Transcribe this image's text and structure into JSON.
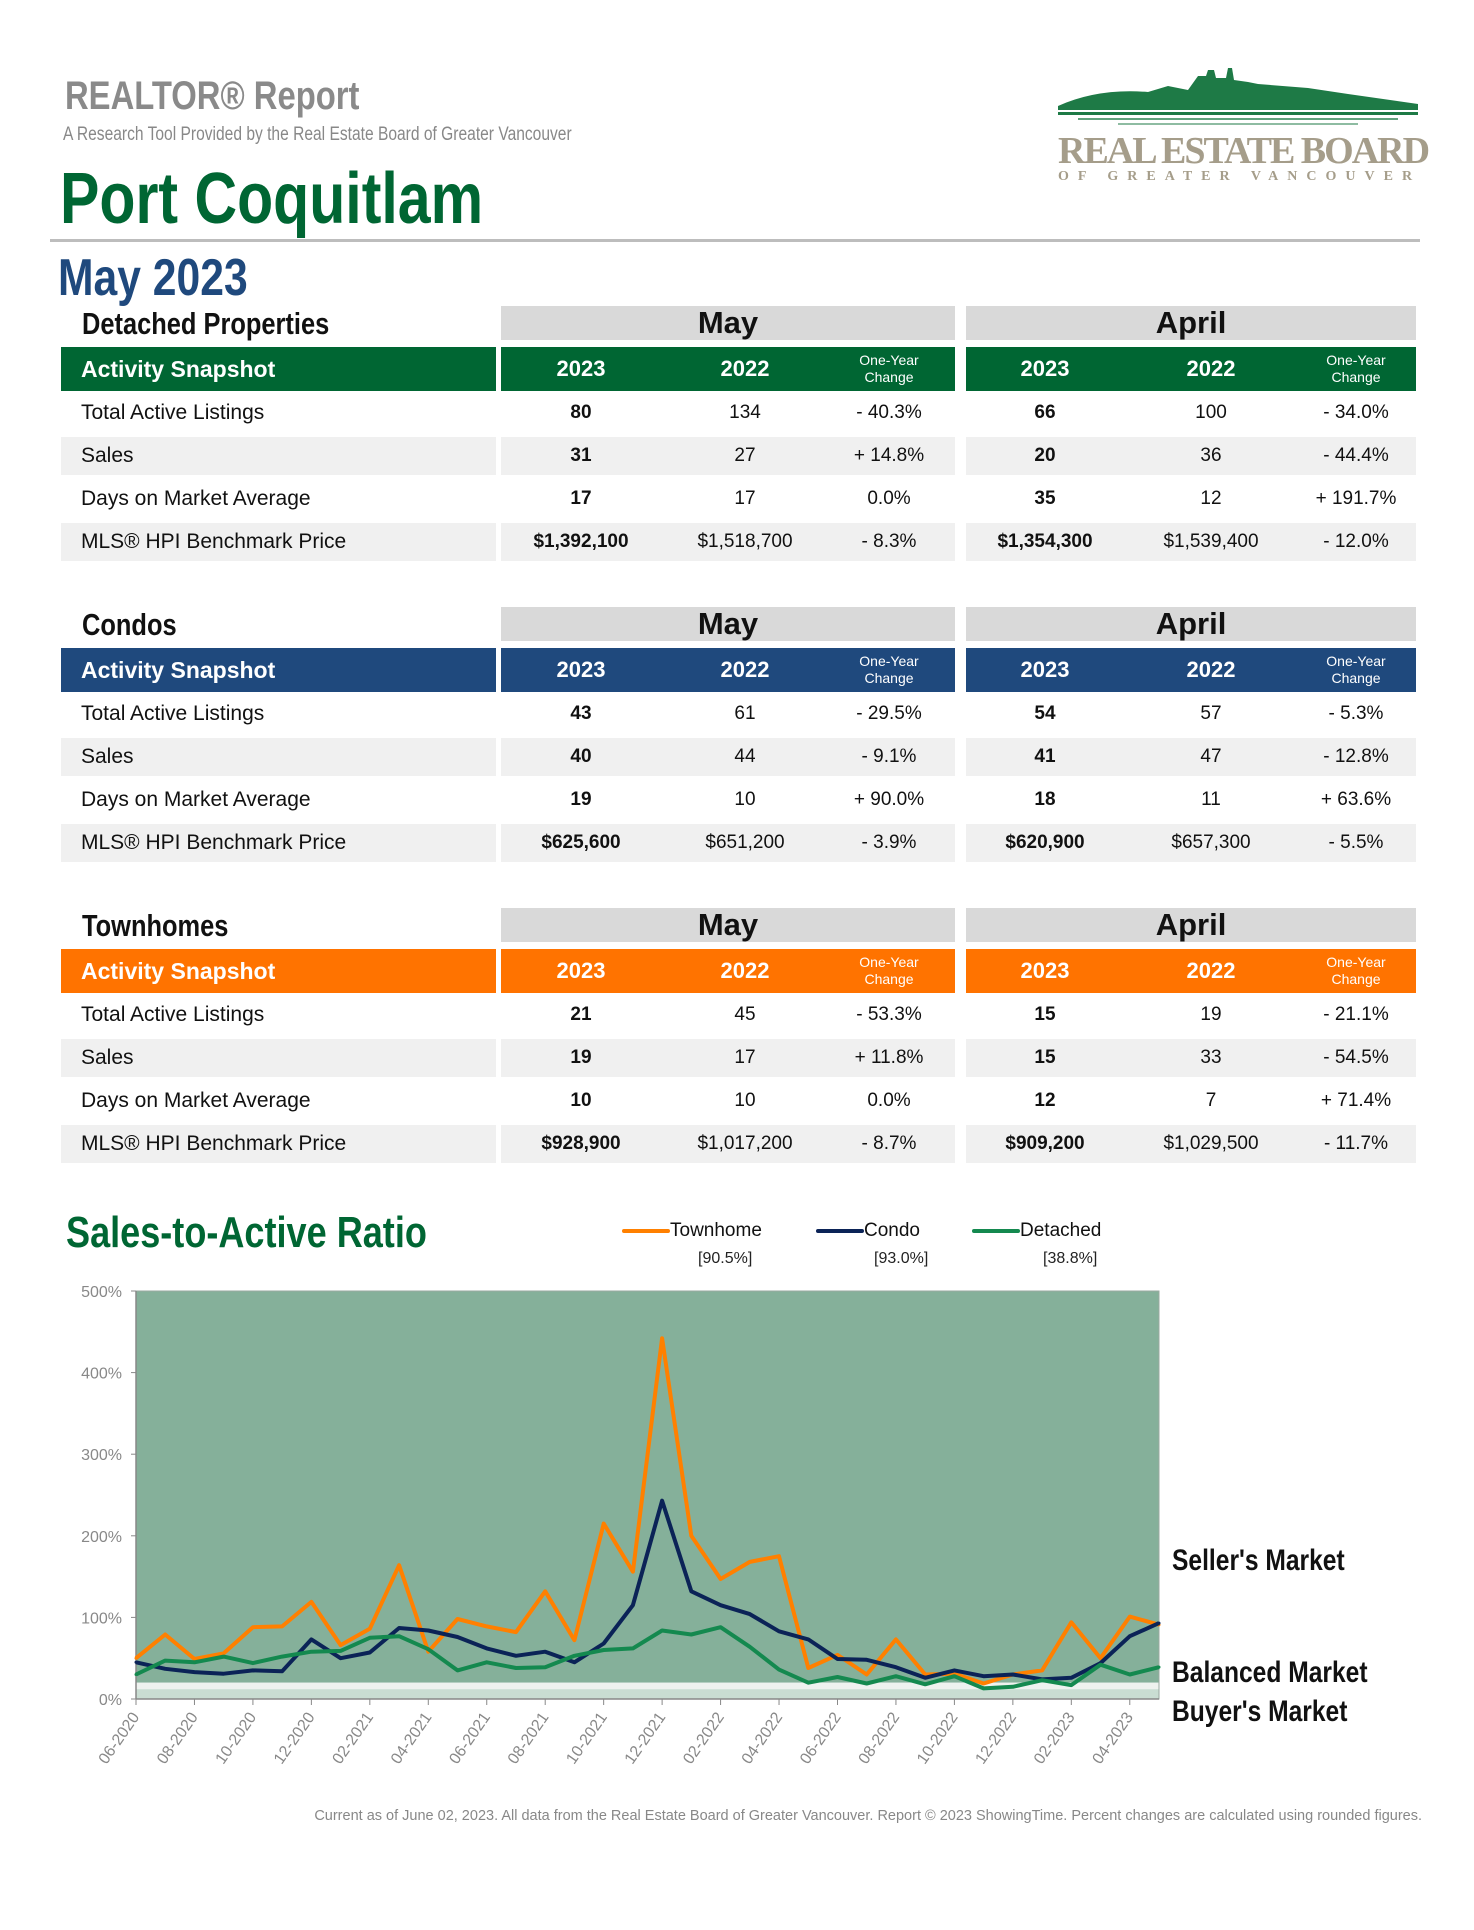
{
  "header": {
    "report_title": "REALTOR® Report",
    "subtitle": "A Research Tool Provided by the Real Estate Board of Greater Vancouver",
    "city": "Port Coquitlam",
    "period": "May 2023",
    "logo_line1": "REAL ESTATE BOARD",
    "logo_line2": "OF GREATER VANCOUVER"
  },
  "columns": {
    "months": [
      "May",
      "April"
    ],
    "snapshot_label": "Activity Snapshot",
    "year_current": "2023",
    "year_prior": "2022",
    "change_line1": "One-Year",
    "change_line2": "Change"
  },
  "sections": [
    {
      "title": "Detached Properties",
      "color": "#006633",
      "rows": [
        {
          "label": "Total Active Listings",
          "may": [
            "80",
            "134",
            "- 40.3%"
          ],
          "april": [
            "66",
            "100",
            "- 34.0%"
          ]
        },
        {
          "label": "Sales",
          "may": [
            "31",
            "27",
            "+ 14.8%"
          ],
          "april": [
            "20",
            "36",
            "- 44.4%"
          ]
        },
        {
          "label": "Days on Market Average",
          "may": [
            "17",
            "17",
            "0.0%"
          ],
          "april": [
            "35",
            "12",
            "+ 191.7%"
          ]
        },
        {
          "label": "MLS® HPI Benchmark Price",
          "may": [
            "$1,392,100",
            "$1,518,700",
            "- 8.3%"
          ],
          "april": [
            "$1,354,300",
            "$1,539,400",
            "- 12.0%"
          ]
        }
      ]
    },
    {
      "title": "Condos",
      "color": "#1f497d",
      "rows": [
        {
          "label": "Total Active Listings",
          "may": [
            "43",
            "61",
            "- 29.5%"
          ],
          "april": [
            "54",
            "57",
            "- 5.3%"
          ]
        },
        {
          "label": "Sales",
          "may": [
            "40",
            "44",
            "- 9.1%"
          ],
          "april": [
            "41",
            "47",
            "- 12.8%"
          ]
        },
        {
          "label": "Days on Market Average",
          "may": [
            "19",
            "10",
            "+ 90.0%"
          ],
          "april": [
            "18",
            "11",
            "+ 63.6%"
          ]
        },
        {
          "label": "MLS® HPI Benchmark Price",
          "may": [
            "$625,600",
            "$651,200",
            "- 3.9%"
          ],
          "april": [
            "$620,900",
            "$657,300",
            "- 5.5%"
          ]
        }
      ]
    },
    {
      "title": "Townhomes",
      "color": "#ff7300",
      "rows": [
        {
          "label": "Total Active Listings",
          "may": [
            "21",
            "45",
            "- 53.3%"
          ],
          "april": [
            "15",
            "19",
            "- 21.1%"
          ]
        },
        {
          "label": "Sales",
          "may": [
            "19",
            "17",
            "+ 11.8%"
          ],
          "april": [
            "15",
            "33",
            "- 54.5%"
          ]
        },
        {
          "label": "Days on Market Average",
          "may": [
            "10",
            "10",
            "0.0%"
          ],
          "april": [
            "12",
            "7",
            "+ 71.4%"
          ]
        },
        {
          "label": "MLS® HPI Benchmark Price",
          "may": [
            "$928,900",
            "$1,017,200",
            "- 8.7%"
          ],
          "april": [
            "$909,200",
            "$1,029,500",
            "- 11.7%"
          ]
        }
      ]
    }
  ],
  "chart_data": {
    "type": "line",
    "title": "Sales-to-Active Ratio",
    "x": [
      "06-2020",
      "07-2020",
      "08-2020",
      "09-2020",
      "10-2020",
      "11-2020",
      "12-2020",
      "01-2021",
      "02-2021",
      "03-2021",
      "04-2021",
      "05-2021",
      "06-2021",
      "07-2021",
      "08-2021",
      "09-2021",
      "10-2021",
      "11-2021",
      "12-2021",
      "01-2022",
      "02-2022",
      "03-2022",
      "04-2022",
      "05-2022",
      "06-2022",
      "07-2022",
      "08-2022",
      "09-2022",
      "10-2022",
      "11-2022",
      "12-2022",
      "01-2023",
      "02-2023",
      "03-2023",
      "04-2023",
      "05-2023"
    ],
    "x_tick_labels": [
      "06-2020",
      "08-2020",
      "10-2020",
      "12-2020",
      "02-2021",
      "04-2021",
      "06-2021",
      "08-2021",
      "10-2021",
      "12-2021",
      "02-2022",
      "04-2022",
      "06-2022",
      "08-2022",
      "10-2022",
      "12-2022",
      "02-2023",
      "04-2023"
    ],
    "y_ticks": [
      "0%",
      "100%",
      "200%",
      "300%",
      "400%",
      "500%"
    ],
    "ylim": [
      0,
      500
    ],
    "y_unit": "%",
    "grid": false,
    "legend_position": "top",
    "series": [
      {
        "name": "Townhome",
        "current": "[90.5%]",
        "color": "#ff8000",
        "values": [
          50,
          79,
          49,
          56,
          88,
          89,
          119,
          66,
          86,
          164,
          58,
          98,
          89,
          82,
          132,
          72,
          215,
          156,
          442,
          200,
          147,
          168,
          175,
          38,
          54,
          30,
          73,
          30,
          31,
          19,
          30,
          35,
          94,
          50,
          101,
          91
        ]
      },
      {
        "name": "Condo",
        "current": "[93.0%]",
        "color": "#0b2357",
        "values": [
          45,
          37,
          33,
          31,
          35,
          34,
          73,
          50,
          57,
          87,
          84,
          76,
          62,
          53,
          58,
          45,
          68,
          115,
          243,
          132,
          115,
          104,
          83,
          73,
          49,
          48,
          39,
          26,
          35,
          28,
          30,
          24,
          26,
          44,
          77,
          93
        ]
      },
      {
        "name": "Detached",
        "current": "[38.8%]",
        "color": "#14894f",
        "values": [
          30,
          47,
          45,
          52,
          44,
          52,
          58,
          59,
          75,
          77,
          61,
          35,
          45,
          38,
          39,
          53,
          60,
          62,
          84,
          79,
          88,
          64,
          36,
          20,
          27,
          19,
          28,
          18,
          28,
          13,
          15,
          23,
          17,
          42,
          30,
          39
        ]
      }
    ],
    "bands": [
      {
        "label": "Seller's Market",
        "from": 20,
        "to": 500,
        "color": "#85b09a"
      },
      {
        "label": "Balanced Market",
        "from": 12,
        "to": 20,
        "color": "#eef2ef"
      },
      {
        "label": "Buyer's Market",
        "from": 0,
        "to": 12,
        "color": "#c9ddd2"
      }
    ]
  },
  "footer": "Current as of June 02, 2023. All data from the Real Estate Board of Greater Vancouver. Report © 2023 ShowingTime. Percent changes are calculated using rounded figures."
}
